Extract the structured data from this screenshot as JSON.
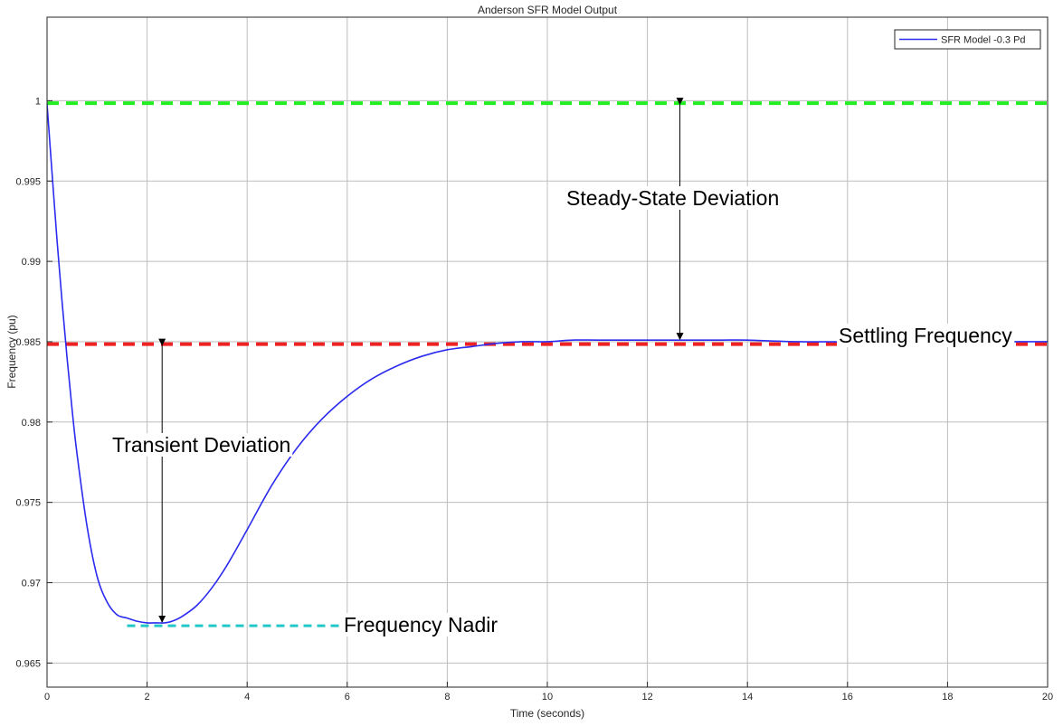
{
  "chart_data": {
    "type": "line",
    "title": "Anderson SFR Model Output",
    "xlabel": "Time (seconds)",
    "ylabel": "Frequency (pu)",
    "xlim": [
      0,
      20
    ],
    "ylim": [
      0.9635,
      1.0052
    ],
    "x_ticks": [
      0,
      2,
      4,
      6,
      8,
      10,
      12,
      14,
      16,
      18,
      20
    ],
    "y_ticks": [
      0.965,
      0.97,
      0.975,
      0.98,
      0.985,
      0.99,
      0.995,
      1
    ],
    "x_tick_labels": [
      "0",
      "2",
      "4",
      "6",
      "8",
      "10",
      "12",
      "14",
      "16",
      "18",
      "20"
    ],
    "y_tick_labels": [
      "0.965",
      "0.97",
      "0.975",
      "0.98",
      "0.985",
      "0.99",
      "0.995",
      "1"
    ],
    "grid": true,
    "legend_position": "top-right",
    "series": [
      {
        "name": "SFR Model -0.3 Pd",
        "color": "#2b2bf0",
        "x": [
          0,
          0.1,
          0.2,
          0.3,
          0.4,
          0.5,
          0.6,
          0.8,
          1.0,
          1.2,
          1.4,
          1.6,
          1.8,
          2.0,
          2.2,
          2.35,
          2.5,
          2.7,
          3.0,
          3.3,
          3.6,
          4.0,
          4.5,
          5.0,
          5.5,
          6.0,
          6.5,
          7.0,
          7.5,
          8.0,
          8.5,
          9.0,
          9.5,
          10.0,
          10.5,
          11.0,
          11.5,
          12.0,
          12.5,
          13.0,
          13.5,
          14.0,
          15.0,
          16.0,
          17.0,
          18.0,
          19.0,
          20.0
        ],
        "y": [
          0.9998,
          0.9955,
          0.9913,
          0.9875,
          0.984,
          0.9808,
          0.978,
          0.9735,
          0.9704,
          0.9688,
          0.968,
          0.9678,
          0.9676,
          0.9675,
          0.9675,
          0.9675,
          0.9676,
          0.9679,
          0.9686,
          0.9697,
          0.9711,
          0.9733,
          0.9761,
          0.9784,
          0.9802,
          0.9816,
          0.9827,
          0.9835,
          0.9841,
          0.9845,
          0.9847,
          0.9849,
          0.985,
          0.985,
          0.9851,
          0.9851,
          0.9851,
          0.9851,
          0.9851,
          0.9851,
          0.9851,
          0.9851,
          0.985,
          0.985,
          0.985,
          0.985,
          0.985,
          0.985
        ]
      }
    ],
    "reference_lines": [
      {
        "label": "Steady-State Deviation",
        "y": 0.99985,
        "color": "#22ee22",
        "style": "dashed"
      },
      {
        "label": "Settling Frequency",
        "y": 0.98485,
        "color": "#ee2222",
        "style": "dashed"
      },
      {
        "label": "Frequency Nadir",
        "y": 0.96732,
        "x_range": [
          1.6,
          6.0
        ],
        "color": "#22c8c8",
        "style": "dashed"
      }
    ],
    "annotations": [
      {
        "text": "Steady-State Deviation",
        "arrow_x": 12.65,
        "arrow_from_y": 0.99985,
        "arrow_to_y": 0.9851
      },
      {
        "text": "Transient Deviation",
        "arrow_x": 2.3,
        "arrow_from_y": 0.98485,
        "arrow_to_y": 0.9675
      },
      {
        "text": "Settling Frequency"
      },
      {
        "text": "Frequency Nadir"
      }
    ]
  }
}
